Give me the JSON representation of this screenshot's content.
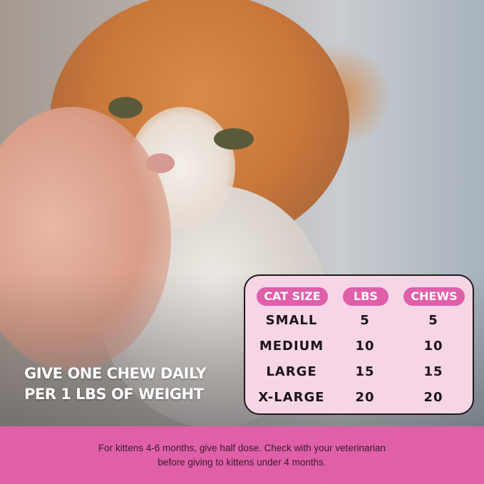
{
  "headline": {
    "line1": "GIVE ONE CHEW DAILY",
    "line2": "PER 1 LBS OF WEIGHT"
  },
  "table": {
    "headers": [
      "CAT SIZE",
      "LBS",
      "CHEWS"
    ],
    "rows": [
      {
        "size": "SMALL",
        "lbs": "5",
        "chews": "5"
      },
      {
        "size": "MEDIUM",
        "lbs": "10",
        "chews": "10"
      },
      {
        "size": "LARGE",
        "lbs": "15",
        "chews": "15"
      },
      {
        "size": "X-LARGE",
        "lbs": "20",
        "chews": "20"
      }
    ]
  },
  "footer": {
    "line1": "For kittens 4-6 months, give half dose. Check with your veterinarian",
    "line2": "before giving to kittens under 4 months."
  },
  "colors": {
    "accent": "#e060a8",
    "table_bg": "#f6d5e6"
  }
}
